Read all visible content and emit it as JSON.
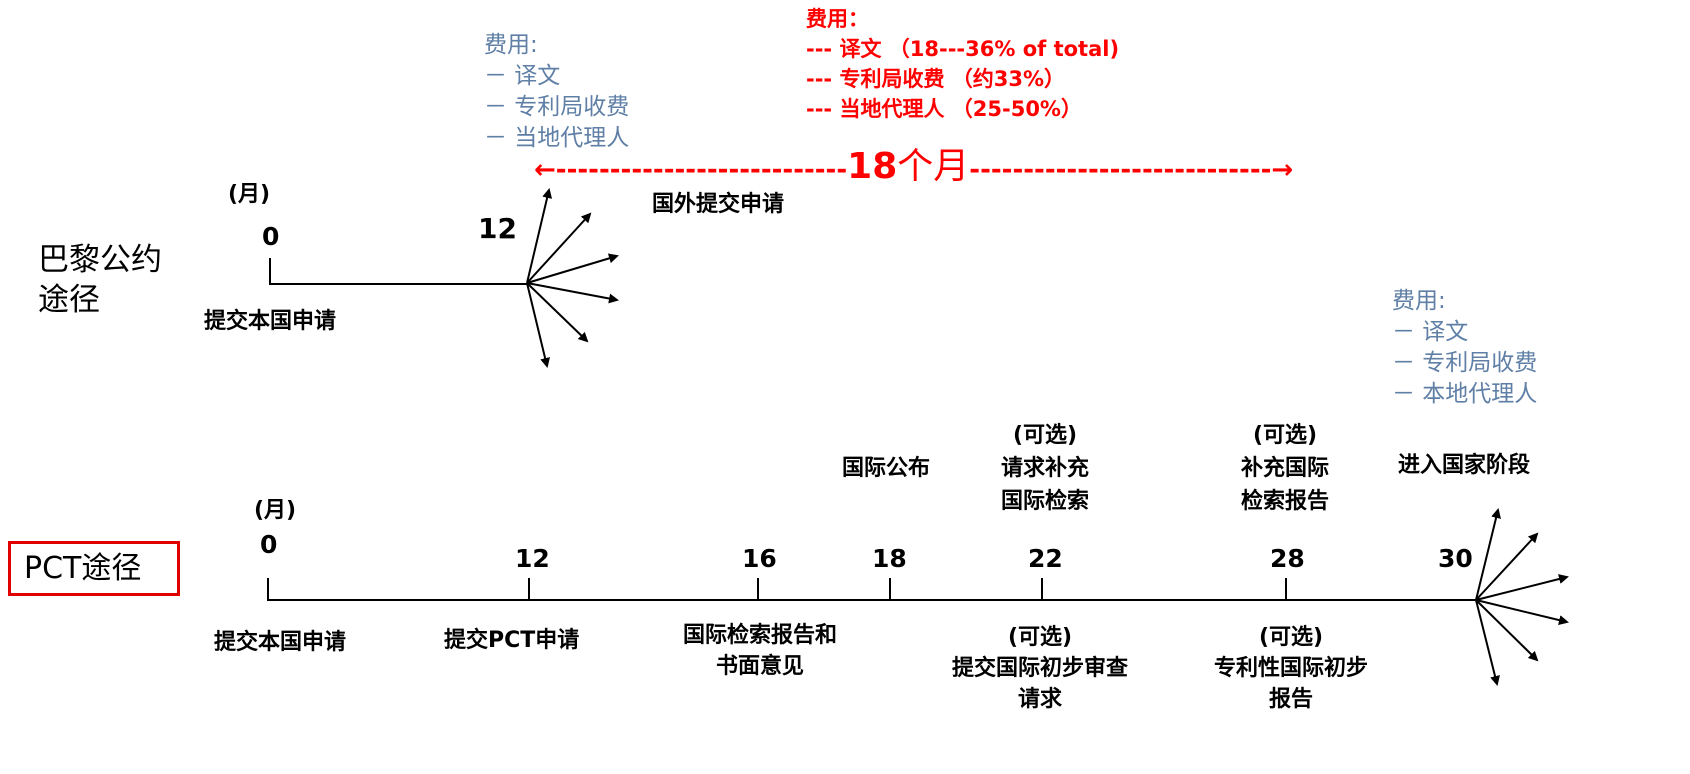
{
  "paris_route": {
    "label_line1": "巴黎公约",
    "label_line2": "途径",
    "month_unit": "(月)",
    "month_start": "0",
    "month_file_abroad": "12",
    "start_caption": "提交本国申请",
    "abroad_caption": "国外提交申请",
    "fees_blue": {
      "title": "费用:",
      "items": [
        "－ 译文",
        "－ 专利局收费",
        "－ 当地代理人"
      ]
    }
  },
  "fees_red": {
    "title": "费用：",
    "line1": "---  译文 （18---36%  of  total)",
    "line2": "---   专利局收费 （约33%）",
    "line3": "---  当地代理人 （25-50%）"
  },
  "span_label": {
    "number": "18",
    "unit": "个月",
    "left_dashes": "←---------------------------",
    "right_dashes": "----------------------------→"
  },
  "pct_route": {
    "label": "PCT途径",
    "month_unit": "(月)",
    "months": [
      "0",
      "12",
      "16",
      "18",
      "22",
      "28",
      "30"
    ],
    "below_captions": {
      "m0": "提交本国申请",
      "m12": "提交PCT申请",
      "m16_line1": "国际检索报告和",
      "m16_line2": "书面意见",
      "m22_line1": "(可选)",
      "m22_line2": "提交国际初步审查",
      "m22_line3": "请求",
      "m28_line1": "(可选)",
      "m28_line2": "专利性国际初步",
      "m28_line3": "报告"
    },
    "above_captions": {
      "m18": "国际公布",
      "m22_line1": "(可选)",
      "m22_line2": "请求补充",
      "m22_line3": "国际检索",
      "m28_line1": "(可选)",
      "m28_line2": "补充国际",
      "m28_line3": "检索报告",
      "m30": "进入国家阶段"
    },
    "fees_blue": {
      "title": "费用:",
      "items": [
        "－ 译文",
        "－ 专利局收费",
        "－ 本地代理人"
      ]
    }
  },
  "colors": {
    "red": "#ff0000",
    "blue_text": "#5f7fa6",
    "box_border": "#e00000",
    "line": "#000000"
  }
}
